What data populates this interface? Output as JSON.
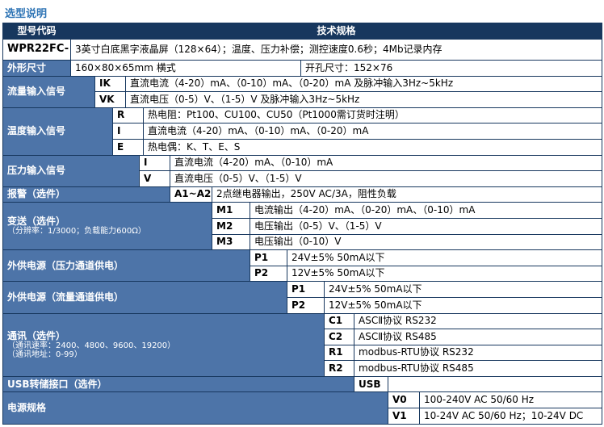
{
  "page": {
    "title": "选型说明"
  },
  "colors": {
    "header_bg": "#17375e",
    "category_bg": "#4d74a8",
    "grid_line": "#17375e",
    "title_color": "#2e74b5",
    "cell_bg": "#ffffff"
  },
  "table": {
    "header": {
      "model_code": "型号代码",
      "tech_spec": "技术规格"
    },
    "model": {
      "code": "WPR22FC-",
      "desc": "3英寸白底黑字液晶屏（128×64）；温度、压力补偿；测控速度0.6秒；4Mb记录内存"
    },
    "dimensions": {
      "label": "外形尺寸",
      "size": "160×80×65mm 横式",
      "cutout": "开孔尺寸：152×76"
    },
    "groups": [
      {
        "label": "流量输入信号",
        "rows": [
          {
            "code": "IK",
            "desc": "直流电流（4-20）mA、（0-10）mA、（0-20）mA 及脉冲输入3Hz~5kHz"
          },
          {
            "code": "VK",
            "desc": "直流电压（0-5）V、（1-5）V 及脉冲输入3Hz~5kHz"
          }
        ]
      },
      {
        "label": "温度输入信号",
        "rows": [
          {
            "code": "R",
            "desc": "热电阻：Pt100、CU100、CU50（Pt1000需订货时注明）"
          },
          {
            "code": "I",
            "desc": "直流电流（4-20）mA、（0-10）mA、（0-20）mA"
          },
          {
            "code": "E",
            "desc": "热电偶：K、T、E、S"
          }
        ]
      },
      {
        "label": "压力输入信号",
        "rows": [
          {
            "code": "I",
            "desc": "直流电流（4-20）mA、（0-10）mA"
          },
          {
            "code": "V",
            "desc": "直流电压（0-5）V、（1-5）V"
          }
        ]
      },
      {
        "label": "报警（选件）",
        "rows": [
          {
            "code": "A1~A2",
            "desc": "2点继电器输出，250V AC/3A，阻性负载"
          }
        ]
      },
      {
        "label": "变送（选件）",
        "sublabels": [
          "（分辨率：1/3000；负载能力600Ω）"
        ],
        "rows": [
          {
            "code": "M1",
            "desc": "电流输出（4-20）mA、（0-20）mA、（0-10）mA"
          },
          {
            "code": "M2",
            "desc": "电压输出（0-5）V、（1-5）V"
          },
          {
            "code": "M3",
            "desc": "电压输出（0-10）V"
          }
        ]
      },
      {
        "label": "外供电源（压力通道供电）",
        "rows": [
          {
            "code": "P1",
            "desc": "24V±5%  50mA以下"
          },
          {
            "code": "P2",
            "desc": "12V±5%  50mA以下"
          }
        ]
      },
      {
        "label": "外供电源（流量通道供电）",
        "rows": [
          {
            "code": "P1",
            "desc": "24V±5%  50mA以下"
          },
          {
            "code": "P2",
            "desc": "12V±5%  50mA以下"
          }
        ]
      },
      {
        "label": "通讯（选件）",
        "sublabels": [
          "（通讯速率：2400、4800、9600、19200）",
          "（通讯地址：0-99）"
        ],
        "rows": [
          {
            "code": "C1",
            "desc": "ASCⅡ协议 RS232"
          },
          {
            "code": "C2",
            "desc": "ASCⅡ协议 RS485"
          },
          {
            "code": "R1",
            "desc": "modbus-RTU协议 RS232"
          },
          {
            "code": "R2",
            "desc": "modbus-RTU协议 RS485"
          }
        ]
      },
      {
        "label": "USB转储接口（选件）",
        "rows": [
          {
            "code": "USB",
            "desc": ""
          }
        ]
      },
      {
        "label": "电源规格",
        "rows": [
          {
            "code": "V0",
            "desc": "100-240V AC 50/60 Hz"
          },
          {
            "code": "V1",
            "desc": "10-24V AC 50/60 Hz；10-24V DC"
          }
        ]
      }
    ]
  }
}
